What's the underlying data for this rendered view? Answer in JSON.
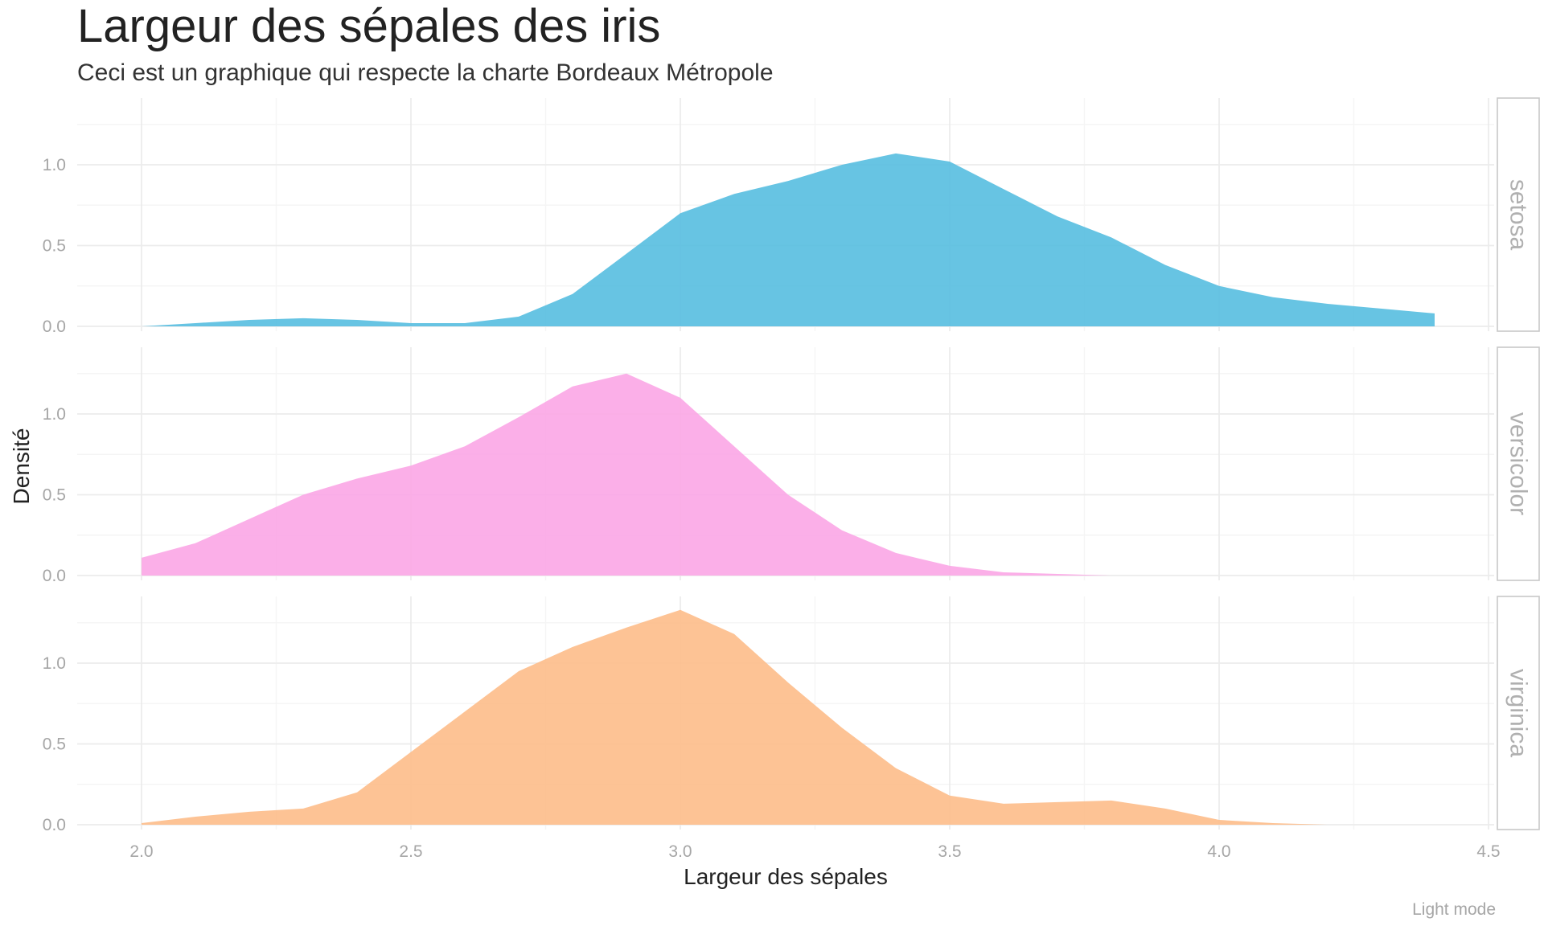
{
  "chart_data": {
    "type": "area",
    "title": "Largeur des sépales des iris",
    "subtitle": "Ceci est un graphique qui respecte la charte Bordeaux Métropole",
    "xlabel": "Largeur des sépales",
    "ylabel": "Densité",
    "caption": "Light mode",
    "xlim": [
      1.88,
      4.52
    ],
    "ylim": [
      0,
      1.35
    ],
    "x_ticks": [
      2.0,
      2.5,
      3.0,
      3.5,
      4.0,
      4.5
    ],
    "x_tick_labels": [
      "2.0",
      "2.5",
      "3.0",
      "3.5",
      "4.0",
      "4.5"
    ],
    "y_ticks": [
      0.0,
      0.5,
      1.0
    ],
    "y_tick_labels": [
      "0.0",
      "0.5",
      "1.0"
    ],
    "grid": true,
    "facets": [
      {
        "name": "setosa",
        "color": "#56bee0",
        "x": [
          2.0,
          2.1,
          2.2,
          2.3,
          2.4,
          2.5,
          2.6,
          2.7,
          2.8,
          2.9,
          3.0,
          3.1,
          3.2,
          3.3,
          3.4,
          3.5,
          3.6,
          3.7,
          3.8,
          3.9,
          4.0,
          4.1,
          4.2,
          4.3,
          4.4
        ],
        "y": [
          0.0,
          0.02,
          0.04,
          0.05,
          0.04,
          0.02,
          0.02,
          0.06,
          0.2,
          0.45,
          0.7,
          0.82,
          0.9,
          1.0,
          1.07,
          1.02,
          0.85,
          0.68,
          0.55,
          0.38,
          0.25,
          0.18,
          0.14,
          0.11,
          0.08
        ]
      },
      {
        "name": "versicolor",
        "color": "#fba6e6",
        "x": [
          2.0,
          2.1,
          2.2,
          2.3,
          2.4,
          2.5,
          2.6,
          2.7,
          2.8,
          2.9,
          3.0,
          3.1,
          3.2,
          3.3,
          3.4,
          3.5,
          3.6,
          3.7,
          3.8,
          3.9
        ],
        "y": [
          0.11,
          0.2,
          0.35,
          0.5,
          0.6,
          0.68,
          0.8,
          0.98,
          1.17,
          1.25,
          1.1,
          0.8,
          0.5,
          0.28,
          0.14,
          0.06,
          0.02,
          0.01,
          0.0,
          0.0
        ]
      },
      {
        "name": "virginica",
        "color": "#fdbc8a",
        "x": [
          2.0,
          2.1,
          2.2,
          2.3,
          2.4,
          2.5,
          2.6,
          2.7,
          2.8,
          2.9,
          3.0,
          3.1,
          3.2,
          3.3,
          3.4,
          3.5,
          3.6,
          3.7,
          3.8,
          3.9,
          4.0,
          4.1,
          4.2
        ],
        "y": [
          0.01,
          0.05,
          0.08,
          0.1,
          0.2,
          0.45,
          0.7,
          0.95,
          1.1,
          1.22,
          1.33,
          1.18,
          0.88,
          0.6,
          0.35,
          0.18,
          0.13,
          0.14,
          0.15,
          0.1,
          0.03,
          0.01,
          0.0
        ]
      }
    ]
  }
}
